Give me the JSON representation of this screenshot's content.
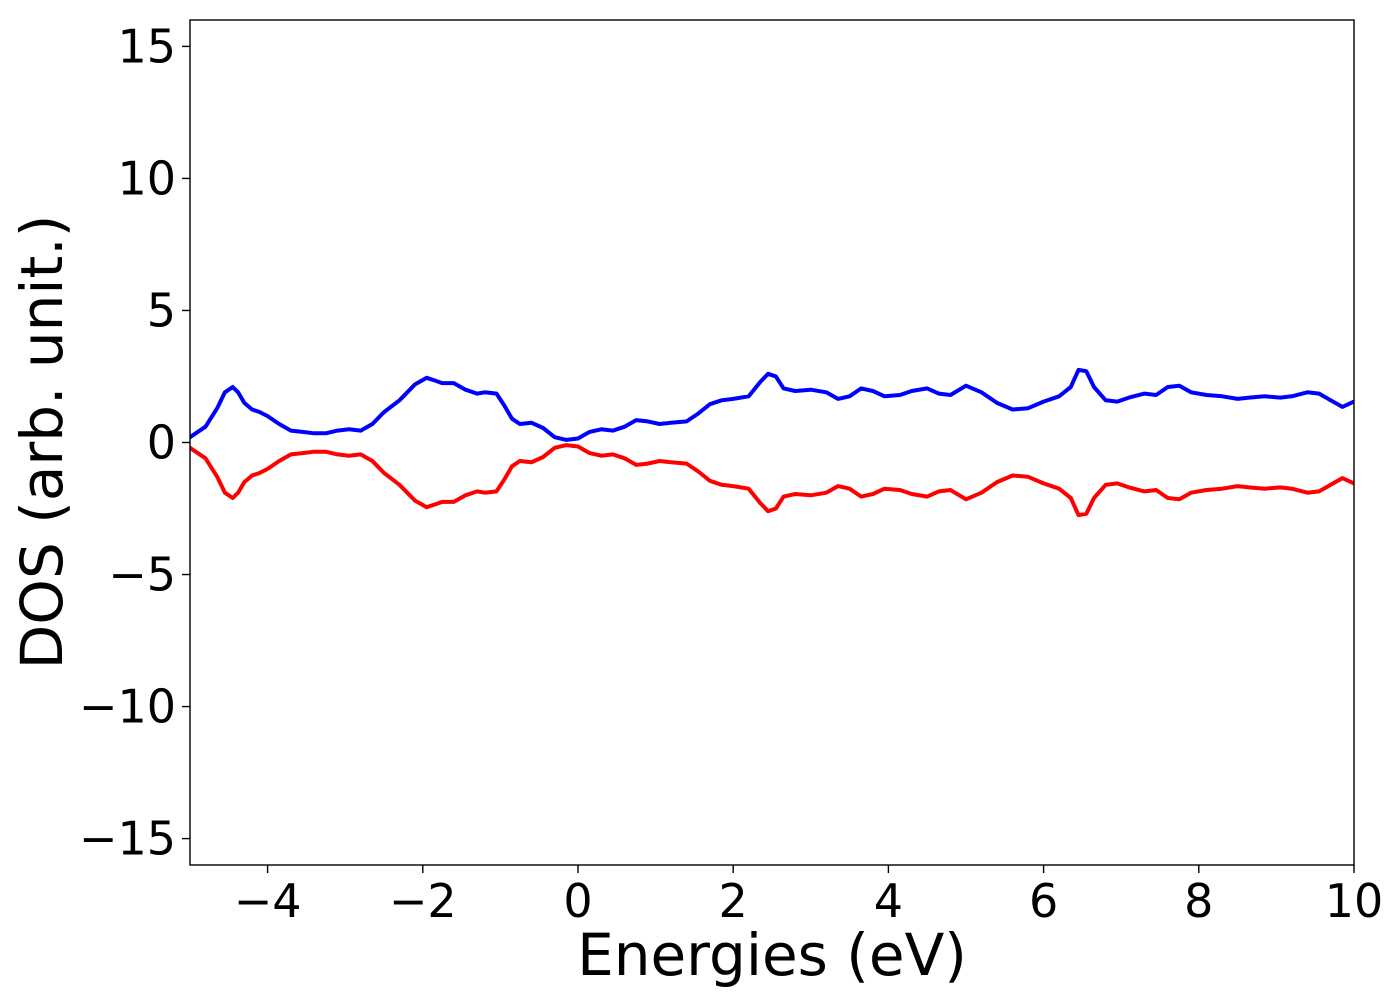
{
  "chart_data": {
    "type": "line",
    "title": "",
    "xlabel": "Energies (eV)",
    "ylabel": "DOS (arb. unit.)",
    "xlim": [
      -5,
      10
    ],
    "ylim": [
      -16,
      16
    ],
    "xticks": [
      -4,
      -2,
      0,
      2,
      4,
      6,
      8,
      10
    ],
    "xtick_labels": [
      "−4",
      "−2",
      "0",
      "2",
      "4",
      "6",
      "8",
      "10"
    ],
    "yticks": [
      15,
      10,
      5,
      0,
      -5,
      -10,
      -15
    ],
    "ytick_labels": [
      "15",
      "10",
      "5",
      "0",
      "−5",
      "−10",
      "−15"
    ],
    "grid": false,
    "legend": "none",
    "series": [
      {
        "color": "#0000ff",
        "x": [
          -5.0,
          -4.8,
          -4.65,
          -4.55,
          -4.45,
          -4.38,
          -4.3,
          -4.2,
          -4.1,
          -4.0,
          -3.85,
          -3.7,
          -3.55,
          -3.4,
          -3.25,
          -3.1,
          -2.95,
          -2.8,
          -2.65,
          -2.5,
          -2.3,
          -2.1,
          -1.95,
          -1.85,
          -1.75,
          -1.6,
          -1.45,
          -1.3,
          -1.2,
          -1.05,
          -0.95,
          -0.85,
          -0.75,
          -0.6,
          -0.45,
          -0.3,
          -0.15,
          0.0,
          0.15,
          0.3,
          0.45,
          0.6,
          0.75,
          0.9,
          1.05,
          1.2,
          1.4,
          1.55,
          1.7,
          1.85,
          2.0,
          2.2,
          2.35,
          2.45,
          2.55,
          2.65,
          2.8,
          3.0,
          3.2,
          3.35,
          3.5,
          3.65,
          3.8,
          3.95,
          4.15,
          4.3,
          4.5,
          4.65,
          4.8,
          5.0,
          5.2,
          5.4,
          5.6,
          5.8,
          6.0,
          6.2,
          6.35,
          6.45,
          6.55,
          6.65,
          6.8,
          6.95,
          7.1,
          7.3,
          7.45,
          7.6,
          7.75,
          7.9,
          8.1,
          8.3,
          8.5,
          8.65,
          8.85,
          9.05,
          9.2,
          9.4,
          9.55,
          9.7,
          9.85,
          10.0
        ],
        "y": [
          0.2,
          0.6,
          1.3,
          1.9,
          2.1,
          1.9,
          1.5,
          1.25,
          1.15,
          1.0,
          0.7,
          0.45,
          0.4,
          0.35,
          0.35,
          0.45,
          0.5,
          0.45,
          0.7,
          1.15,
          1.6,
          2.2,
          2.45,
          2.35,
          2.25,
          2.25,
          2.0,
          1.85,
          1.9,
          1.85,
          1.4,
          0.9,
          0.7,
          0.75,
          0.55,
          0.2,
          0.1,
          0.15,
          0.4,
          0.5,
          0.45,
          0.6,
          0.85,
          0.8,
          0.7,
          0.75,
          0.8,
          1.1,
          1.45,
          1.6,
          1.65,
          1.75,
          2.3,
          2.6,
          2.5,
          2.05,
          1.95,
          2.0,
          1.9,
          1.65,
          1.75,
          2.05,
          1.95,
          1.75,
          1.8,
          1.95,
          2.05,
          1.85,
          1.8,
          2.15,
          1.9,
          1.5,
          1.25,
          1.3,
          1.55,
          1.75,
          2.1,
          2.75,
          2.7,
          2.1,
          1.6,
          1.55,
          1.7,
          1.85,
          1.8,
          2.1,
          2.15,
          1.9,
          1.8,
          1.75,
          1.65,
          1.7,
          1.75,
          1.7,
          1.75,
          1.9,
          1.85,
          1.6,
          1.35,
          1.55
        ]
      },
      {
        "color": "#ff0000",
        "x": [
          -5.0,
          -4.8,
          -4.65,
          -4.55,
          -4.45,
          -4.38,
          -4.3,
          -4.2,
          -4.1,
          -4.0,
          -3.85,
          -3.7,
          -3.55,
          -3.4,
          -3.25,
          -3.1,
          -2.95,
          -2.8,
          -2.65,
          -2.5,
          -2.3,
          -2.1,
          -1.95,
          -1.85,
          -1.75,
          -1.6,
          -1.45,
          -1.3,
          -1.2,
          -1.05,
          -0.95,
          -0.85,
          -0.75,
          -0.6,
          -0.45,
          -0.3,
          -0.15,
          0.0,
          0.15,
          0.3,
          0.45,
          0.6,
          0.75,
          0.9,
          1.05,
          1.2,
          1.4,
          1.55,
          1.7,
          1.85,
          2.0,
          2.2,
          2.35,
          2.45,
          2.55,
          2.65,
          2.8,
          3.0,
          3.2,
          3.35,
          3.5,
          3.65,
          3.8,
          3.95,
          4.15,
          4.3,
          4.5,
          4.65,
          4.8,
          5.0,
          5.2,
          5.4,
          5.6,
          5.8,
          6.0,
          6.2,
          6.35,
          6.45,
          6.55,
          6.65,
          6.8,
          6.95,
          7.1,
          7.3,
          7.45,
          7.6,
          7.75,
          7.9,
          8.1,
          8.3,
          8.5,
          8.65,
          8.85,
          9.05,
          9.2,
          9.4,
          9.55,
          9.7,
          9.85,
          10.0
        ],
        "y": [
          -0.2,
          -0.6,
          -1.3,
          -1.9,
          -2.1,
          -1.9,
          -1.5,
          -1.25,
          -1.15,
          -1.0,
          -0.7,
          -0.45,
          -0.4,
          -0.35,
          -0.35,
          -0.45,
          -0.5,
          -0.45,
          -0.7,
          -1.15,
          -1.6,
          -2.2,
          -2.45,
          -2.35,
          -2.25,
          -2.25,
          -2.0,
          -1.85,
          -1.9,
          -1.85,
          -1.4,
          -0.9,
          -0.7,
          -0.75,
          -0.55,
          -0.2,
          -0.1,
          -0.15,
          -0.4,
          -0.5,
          -0.45,
          -0.6,
          -0.85,
          -0.8,
          -0.7,
          -0.75,
          -0.8,
          -1.1,
          -1.45,
          -1.6,
          -1.65,
          -1.75,
          -2.3,
          -2.6,
          -2.5,
          -2.05,
          -1.95,
          -2.0,
          -1.9,
          -1.65,
          -1.75,
          -2.05,
          -1.95,
          -1.75,
          -1.8,
          -1.95,
          -2.05,
          -1.85,
          -1.8,
          -2.15,
          -1.9,
          -1.5,
          -1.25,
          -1.3,
          -1.55,
          -1.75,
          -2.1,
          -2.75,
          -2.7,
          -2.1,
          -1.6,
          -1.55,
          -1.7,
          -1.85,
          -1.8,
          -2.1,
          -2.15,
          -1.9,
          -1.8,
          -1.75,
          -1.65,
          -1.7,
          -1.75,
          -1.7,
          -1.75,
          -1.9,
          -1.85,
          -1.6,
          -1.35,
          -1.55
        ]
      }
    ]
  }
}
